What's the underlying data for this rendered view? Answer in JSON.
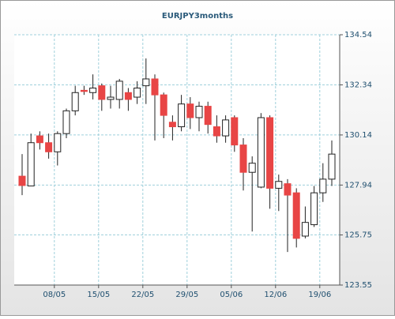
{
  "chart_data": {
    "type": "candlestick",
    "title": "EURJPY3months",
    "categories": [
      "",
      null,
      null,
      null,
      "08/05",
      null,
      null,
      null,
      null,
      "15/05",
      null,
      null,
      null,
      null,
      "22/05",
      null,
      null,
      null,
      null,
      "29/05",
      null,
      null,
      null,
      null,
      "05/06",
      null,
      null,
      null,
      null,
      "12/06",
      null,
      null,
      null,
      null,
      "19/06",
      null
    ],
    "open": [
      128.33,
      127.9,
      130.1,
      129.8,
      129.4,
      130.2,
      131.2,
      132.1,
      132.0,
      132.3,
      131.7,
      131.7,
      132.0,
      131.8,
      132.3,
      132.6,
      131.9,
      130.7,
      130.5,
      131.5,
      130.9,
      131.4,
      130.5,
      130.1,
      130.9,
      129.7,
      128.5,
      127.85,
      130.9,
      127.8,
      128.0,
      127.6,
      125.7,
      126.2,
      127.6,
      128.2
    ],
    "high": [
      129.3,
      130.2,
      130.3,
      130.2,
      130.3,
      131.3,
      132.3,
      132.3,
      132.8,
      132.4,
      132.3,
      132.6,
      132.2,
      132.5,
      133.5,
      132.8,
      132.0,
      131.0,
      131.9,
      131.8,
      131.6,
      131.6,
      131.0,
      131.0,
      131.0,
      130.0,
      129.2,
      131.1,
      131.0,
      128.4,
      128.2,
      127.8,
      127.0,
      127.9,
      128.9,
      129.9
    ],
    "low": [
      127.5,
      127.9,
      129.5,
      129.1,
      128.8,
      130.0,
      131.0,
      131.9,
      131.7,
      131.2,
      131.3,
      131.3,
      131.2,
      131.5,
      131.5,
      129.9,
      130.0,
      129.9,
      130.3,
      130.4,
      130.3,
      130.2,
      129.8,
      129.8,
      129.4,
      127.7,
      125.9,
      127.8,
      126.9,
      126.8,
      125.0,
      125.2,
      125.6,
      126.1,
      127.2,
      127.9
    ],
    "close": [
      127.92,
      129.8,
      129.8,
      129.4,
      130.2,
      131.2,
      132.0,
      132.05,
      132.2,
      131.7,
      131.8,
      132.5,
      131.7,
      132.2,
      132.6,
      131.9,
      131.0,
      130.5,
      131.5,
      130.9,
      131.4,
      130.6,
      130.1,
      130.8,
      129.7,
      128.5,
      128.9,
      130.9,
      127.8,
      128.1,
      127.5,
      125.6,
      126.3,
      127.6,
      128.2,
      129.3
    ],
    "up_color": "#ffffff",
    "down_color": "#e84545",
    "ylim": [
      123.55,
      134.54
    ],
    "yticks": [
      {
        "value": 123.55,
        "label": "123.55"
      },
      {
        "value": 125.75,
        "label": "125.75"
      },
      127.94,
      130.14,
      132.34,
      134.54
    ],
    "grid": true
  }
}
